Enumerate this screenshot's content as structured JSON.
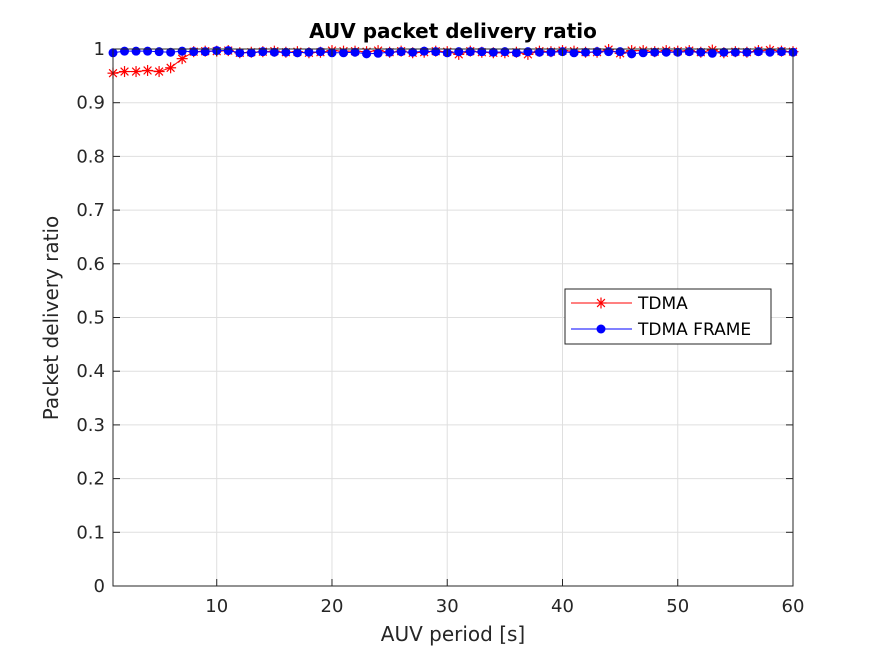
{
  "chart_data": {
    "type": "line",
    "title": "AUV packet delivery ratio",
    "xlabel": "AUV period [s]",
    "ylabel": "Packet delivery ratio",
    "xlim": [
      1,
      60
    ],
    "ylim": [
      0,
      1
    ],
    "xticks": [
      10,
      20,
      30,
      40,
      50,
      60
    ],
    "xtick_labels": [
      "10",
      "20",
      "30",
      "40",
      "50",
      "60"
    ],
    "yticks": [
      0,
      0.1,
      0.2,
      0.3,
      0.4,
      0.5,
      0.6,
      0.7,
      0.8,
      0.9,
      1
    ],
    "ytick_labels": [
      "0",
      "0.1",
      "0.2",
      "0.3",
      "0.4",
      "0.5",
      "0.6",
      "0.7",
      "0.8",
      "0.9",
      "1"
    ],
    "grid": true,
    "legend_position": "middle-right",
    "x": [
      1,
      2,
      3,
      4,
      5,
      6,
      7,
      8,
      9,
      10,
      11,
      12,
      13,
      14,
      15,
      16,
      17,
      18,
      19,
      20,
      21,
      22,
      23,
      24,
      25,
      26,
      27,
      28,
      29,
      30,
      31,
      32,
      33,
      34,
      35,
      36,
      37,
      38,
      39,
      40,
      41,
      42,
      43,
      44,
      45,
      46,
      47,
      48,
      49,
      50,
      51,
      52,
      53,
      54,
      55,
      56,
      57,
      58,
      59,
      60
    ],
    "series": [
      {
        "name": "TDMA",
        "color": "#ff0000",
        "marker": "asterisk",
        "values": [
          0.955,
          0.958,
          0.958,
          0.96,
          0.958,
          0.965,
          0.982,
          0.995,
          0.996,
          0.996,
          0.997,
          0.993,
          0.994,
          0.995,
          0.996,
          0.994,
          0.995,
          0.993,
          0.994,
          0.997,
          0.996,
          0.996,
          0.995,
          0.997,
          0.994,
          0.996,
          0.993,
          0.994,
          0.996,
          0.995,
          0.99,
          0.996,
          0.994,
          0.993,
          0.993,
          0.994,
          0.99,
          0.996,
          0.995,
          0.997,
          0.996,
          0.994,
          0.994,
          0.999,
          0.992,
          0.997,
          0.997,
          0.995,
          0.997,
          0.996,
          0.997,
          0.994,
          0.998,
          0.993,
          0.995,
          0.994,
          0.997,
          0.998,
          0.996,
          0.995
        ]
      },
      {
        "name": "TDMA FRAME",
        "color": "#0000ff",
        "marker": "dot",
        "values": [
          0.993,
          0.996,
          0.996,
          0.996,
          0.995,
          0.994,
          0.996,
          0.995,
          0.995,
          0.997,
          0.997,
          0.993,
          0.993,
          0.995,
          0.994,
          0.994,
          0.993,
          0.994,
          0.995,
          0.993,
          0.993,
          0.994,
          0.991,
          0.992,
          0.994,
          0.995,
          0.994,
          0.996,
          0.995,
          0.993,
          0.995,
          0.995,
          0.995,
          0.994,
          0.995,
          0.993,
          0.995,
          0.994,
          0.994,
          0.995,
          0.993,
          0.994,
          0.995,
          0.995,
          0.995,
          0.991,
          0.993,
          0.994,
          0.994,
          0.994,
          0.995,
          0.994,
          0.992,
          0.994,
          0.994,
          0.994,
          0.995,
          0.994,
          0.995,
          0.994
        ]
      }
    ]
  }
}
